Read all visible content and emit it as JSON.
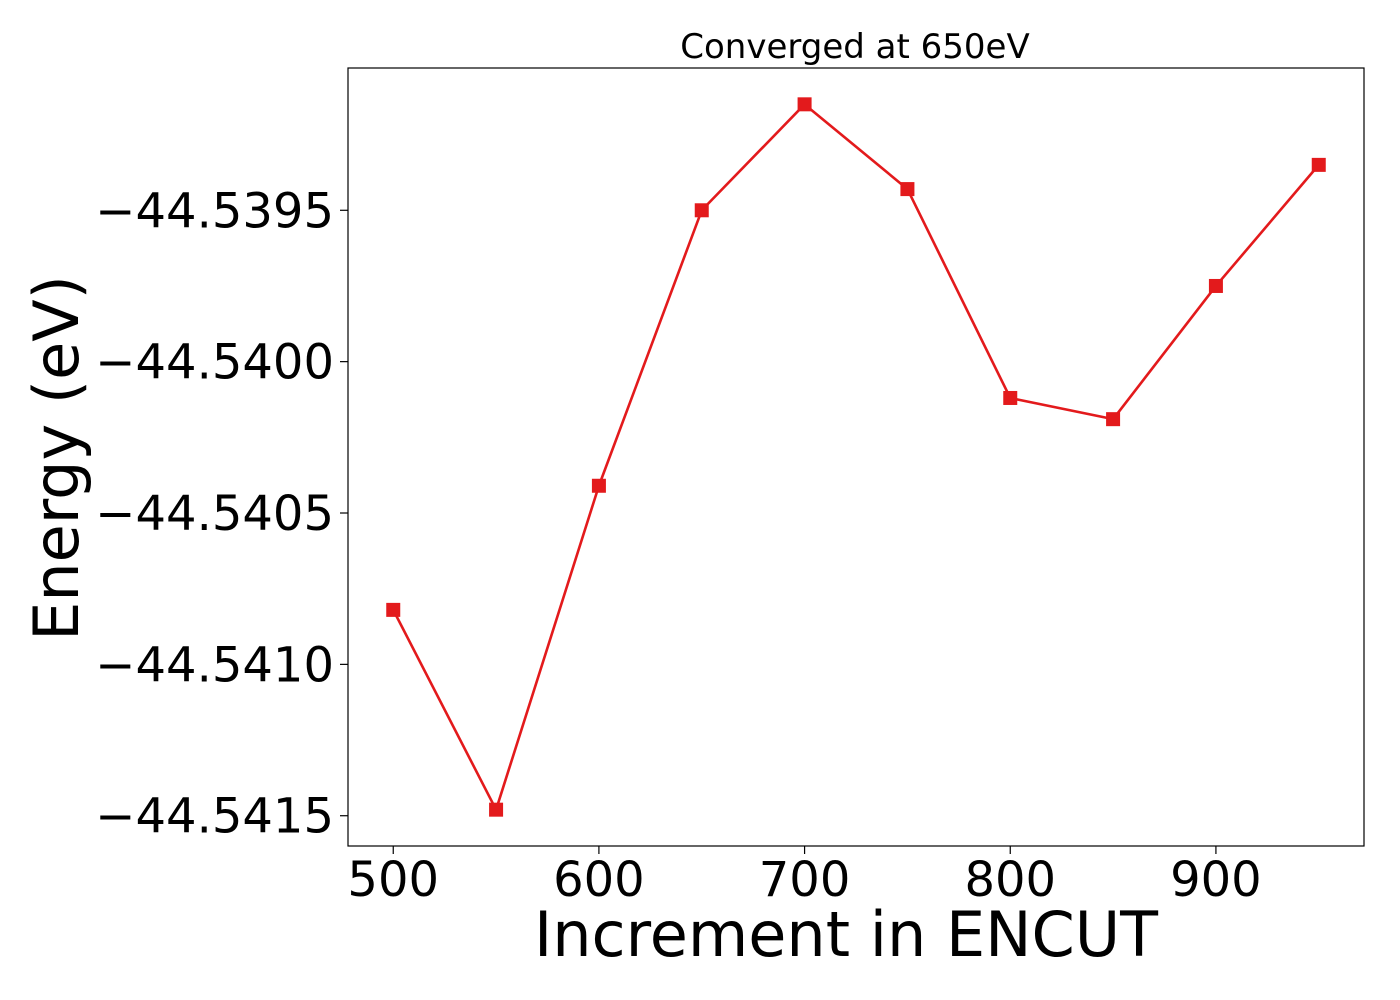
{
  "chart_data": {
    "type": "line",
    "title": "Converged at 650eV",
    "xlabel": "Increment in ENCUT",
    "ylabel": "Energy (eV)",
    "x": [
      500,
      550,
      600,
      650,
      700,
      750,
      800,
      850,
      900,
      950
    ],
    "series": [
      {
        "values": [
          -44.54082,
          -44.54148,
          -44.54041,
          -44.5395,
          -44.53915,
          -44.53943,
          -44.54012,
          -44.54019,
          -44.53975,
          -44.53935
        ],
        "color": "#e31a1c",
        "marker": "square"
      }
    ],
    "xticks": [
      500,
      600,
      700,
      800,
      900
    ],
    "xtick_labels": [
      "500",
      "600",
      "700",
      "800",
      "900"
    ],
    "yticks": [
      -44.5395,
      -44.54,
      -44.5405,
      -44.541,
      -44.5415
    ],
    "ytick_labels": [
      "−44.5395",
      "−44.5400",
      "−44.5405",
      "−44.5410",
      "−44.5415"
    ],
    "xlim": [
      478,
      972
    ],
    "ylim": [
      -44.5416,
      -44.53903
    ],
    "grid": false,
    "legend": "none"
  }
}
